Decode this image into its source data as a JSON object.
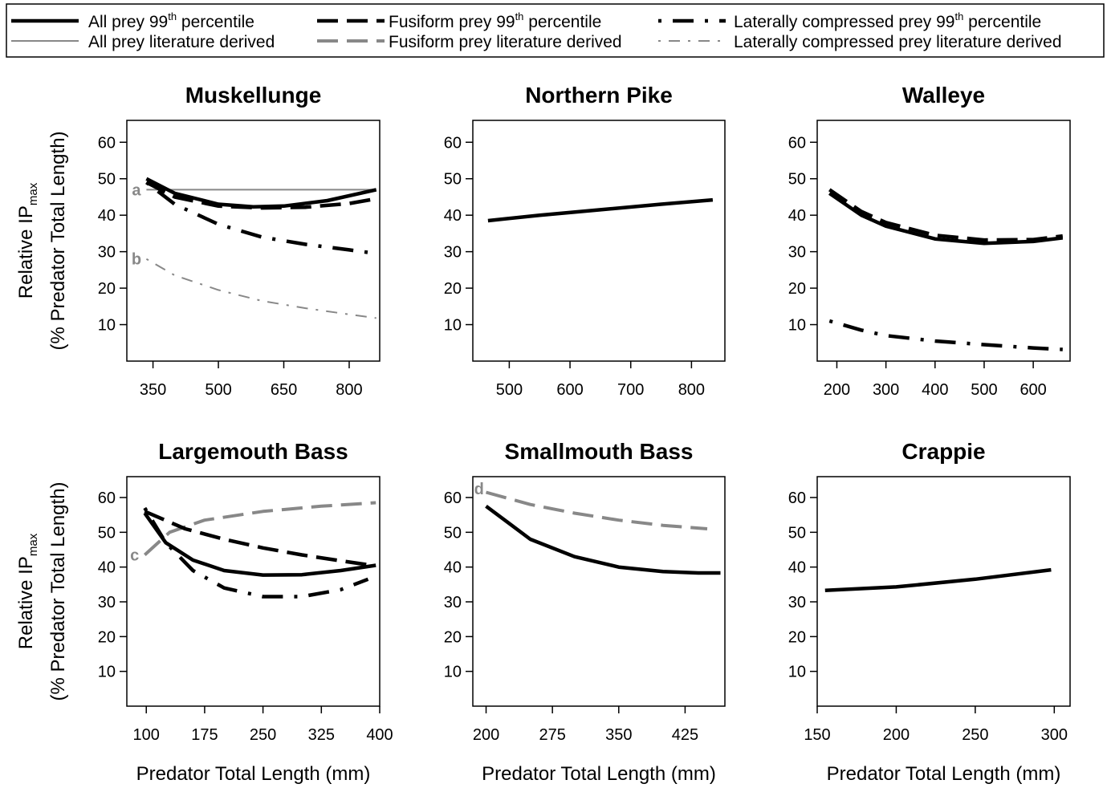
{
  "legend": {
    "position": "top",
    "entries": [
      {
        "label": "All prey 99",
        "sup": "th",
        "tail": " percentile",
        "color": "#000000",
        "style": "solid-thick"
      },
      {
        "label": "Fusiform prey 99",
        "sup": "th",
        "tail": " percentile",
        "color": "#000000",
        "style": "dashed-thick"
      },
      {
        "label": "Laterally compressed prey 99",
        "sup": "th",
        "tail": " percentile",
        "color": "#000000",
        "style": "dotdash-thick"
      },
      {
        "label": "All prey literature derived",
        "sup": "",
        "tail": "",
        "color": "#888888",
        "style": "solid-thin"
      },
      {
        "label": "Fusiform prey literature derived",
        "sup": "",
        "tail": "",
        "color": "#888888",
        "style": "dashed-thin"
      },
      {
        "label": "Laterally compressed prey literature derived",
        "sup": "",
        "tail": "",
        "color": "#888888",
        "style": "dotdash-thin"
      }
    ]
  },
  "axis_text": {
    "ylabel_main": "Relative IP",
    "ylabel_sub": "max",
    "ylabel_line2": "(% Predator Total Length)",
    "xlabel": "Predator Total Length (mm)"
  },
  "chart_data": [
    {
      "type": "line",
      "title": "Muskellunge",
      "xlim": [
        290,
        870
      ],
      "ylim": [
        0,
        66
      ],
      "xticks": [
        350,
        500,
        650,
        800
      ],
      "yticks": [
        10,
        20,
        30,
        40,
        50,
        60
      ],
      "series": [
        {
          "style": "solid-thin",
          "color": "#888888",
          "x": [
            335,
            862
          ],
          "y": [
            47,
            47
          ]
        },
        {
          "style": "dotdash-thin",
          "color": "#888888",
          "x": [
            335,
            400,
            500,
            600,
            700,
            800,
            862
          ],
          "y": [
            28,
            23.5,
            19.5,
            16.5,
            14.5,
            12.8,
            11.8
          ]
        },
        {
          "style": "solid-thick",
          "color": "#000000",
          "x": [
            335,
            400,
            500,
            580,
            650,
            750,
            862
          ],
          "y": [
            50,
            46,
            43,
            42.3,
            42.5,
            44,
            47
          ]
        },
        {
          "style": "dashed-thick",
          "color": "#000000",
          "x": [
            335,
            400,
            500,
            600,
            700,
            800,
            862
          ],
          "y": [
            49,
            45,
            42.5,
            42,
            42.2,
            43.2,
            44.5
          ]
        },
        {
          "style": "dotdash-thick",
          "color": "#000000",
          "x": [
            335,
            400,
            500,
            600,
            700,
            800,
            862
          ],
          "y": [
            49,
            43,
            37.5,
            34,
            32,
            30.5,
            29.5
          ]
        }
      ],
      "annotations": [
        {
          "text": "a",
          "x": 312,
          "y": 47
        },
        {
          "text": "b",
          "x": 312,
          "y": 28
        }
      ]
    },
    {
      "type": "line",
      "title": "Northern Pike",
      "xlim": [
        440,
        855
      ],
      "ylim": [
        0,
        66
      ],
      "xticks": [
        500,
        600,
        700,
        800
      ],
      "yticks": [
        10,
        20,
        30,
        40,
        50,
        60
      ],
      "series": [
        {
          "style": "solid-thick",
          "color": "#000000",
          "x": [
            465,
            550,
            650,
            750,
            835
          ],
          "y": [
            38.5,
            40,
            41.5,
            43,
            44.2
          ]
        }
      ],
      "annotations": []
    },
    {
      "type": "line",
      "title": "Walleye",
      "xlim": [
        160,
        675
      ],
      "ylim": [
        0,
        66
      ],
      "xticks": [
        200,
        300,
        400,
        500,
        600
      ],
      "yticks": [
        10,
        20,
        30,
        40,
        50,
        60
      ],
      "series": [
        {
          "style": "solid-thick",
          "color": "#000000",
          "x": [
            185,
            250,
            300,
            400,
            500,
            600,
            660
          ],
          "y": [
            46,
            40,
            37,
            33.5,
            32.3,
            32.8,
            33.8
          ]
        },
        {
          "style": "dashed-thick",
          "color": "#000000",
          "x": [
            185,
            250,
            300,
            400,
            500,
            600,
            660
          ],
          "y": [
            47,
            41,
            38,
            34.5,
            33.2,
            33.3,
            34.3
          ]
        },
        {
          "style": "dotdash-thick",
          "color": "#000000",
          "x": [
            185,
            250,
            300,
            400,
            500,
            600,
            660
          ],
          "y": [
            11,
            8.5,
            7,
            5.5,
            4.5,
            3.6,
            3.2
          ]
        }
      ],
      "annotations": []
    },
    {
      "type": "line",
      "title": "Largemouth Bass",
      "xlim": [
        75,
        400
      ],
      "ylim": [
        0,
        66
      ],
      "xticks": [
        100,
        175,
        250,
        325,
        400
      ],
      "yticks": [
        10,
        20,
        30,
        40,
        50,
        60
      ],
      "series": [
        {
          "style": "dashed-thin",
          "color": "#888888",
          "x": [
            98,
            130,
            175,
            250,
            325,
            395
          ],
          "y": [
            43.5,
            50,
            53.5,
            56,
            57.5,
            58.5
          ]
        },
        {
          "style": "solid-thick",
          "color": "#000000",
          "x": [
            98,
            125,
            160,
            200,
            250,
            300,
            350,
            395
          ],
          "y": [
            55.5,
            47,
            42,
            39,
            37.7,
            37.8,
            39,
            40.5
          ]
        },
        {
          "style": "dashed-thick",
          "color": "#000000",
          "x": [
            98,
            150,
            200,
            250,
            300,
            350,
            390
          ],
          "y": [
            56,
            51,
            48,
            45.5,
            43.5,
            41.8,
            40.5
          ]
        },
        {
          "style": "dotdash-thick",
          "color": "#000000",
          "x": [
            98,
            125,
            160,
            200,
            250,
            300,
            350,
            385
          ],
          "y": [
            57,
            47,
            39,
            34,
            31.5,
            31.5,
            33.5,
            36.5
          ]
        }
      ],
      "annotations": [
        {
          "text": "c",
          "x": 85,
          "y": 43.5
        }
      ]
    },
    {
      "type": "line",
      "title": "Smallmouth Bass",
      "xlim": [
        185,
        470
      ],
      "ylim": [
        0,
        66
      ],
      "xticks": [
        200,
        275,
        350,
        425
      ],
      "yticks": [
        10,
        20,
        30,
        40,
        50,
        60
      ],
      "series": [
        {
          "style": "dashed-thin",
          "color": "#888888",
          "x": [
            200,
            250,
            300,
            350,
            400,
            450
          ],
          "y": [
            61.5,
            58,
            55.5,
            53.5,
            52,
            51
          ]
        },
        {
          "style": "solid-thick",
          "color": "#000000",
          "x": [
            200,
            250,
            300,
            350,
            400,
            440,
            465
          ],
          "y": [
            57.5,
            48,
            43,
            40,
            38.7,
            38.3,
            38.3
          ]
        }
      ],
      "annotations": [
        {
          "text": "d",
          "x": 192,
          "y": 62.5
        }
      ]
    },
    {
      "type": "line",
      "title": "Crappie",
      "xlim": [
        150,
        310
      ],
      "ylim": [
        0,
        66
      ],
      "xticks": [
        150,
        200,
        250,
        300
      ],
      "yticks": [
        10,
        20,
        30,
        40,
        50,
        60
      ],
      "series": [
        {
          "style": "solid-thick",
          "color": "#000000",
          "x": [
            155,
            200,
            250,
            298
          ],
          "y": [
            33.3,
            34.3,
            36.5,
            39.2
          ]
        }
      ],
      "annotations": []
    }
  ]
}
